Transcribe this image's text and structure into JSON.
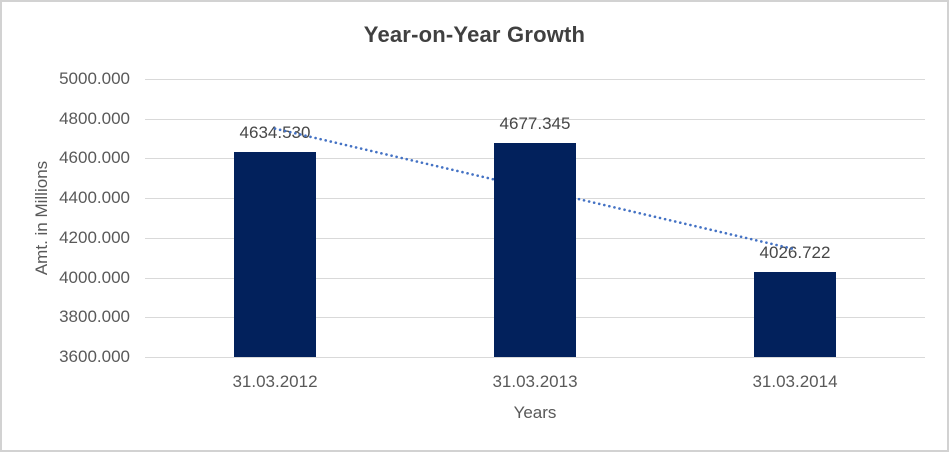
{
  "chart": {
    "title": "Year-on-Year Growth",
    "y_axis_title": "Amt. in Millions",
    "x_axis_title": "Years"
  },
  "chart_data": {
    "type": "bar",
    "title": "Year-on-Year Growth",
    "xlabel": "Years",
    "ylabel": "Amt. in Millions",
    "categories": [
      "31.03.2012",
      "31.03.2013",
      "31.03.2014"
    ],
    "values": [
      4634.53,
      4677.345,
      4026.722
    ],
    "data_labels": [
      "4634.530",
      "4677.345",
      "4026.722"
    ],
    "ylim": [
      3600,
      5000
    ],
    "ytick_step": 200,
    "ytick_labels": [
      "5000.000",
      "4800.000",
      "4600.000",
      "4400.000",
      "4200.000",
      "4000.000",
      "3800.000",
      "3600.000"
    ],
    "grid": true,
    "legend": "none",
    "trendline": {
      "type": "linear",
      "style": "dotted",
      "start_value": 4750.1,
      "end_value": 4142.3
    },
    "colors": {
      "bar": "#02215C",
      "trendline": "#4472C4",
      "gridline": "#D9D9D9",
      "title_text": "#404040",
      "axis_text": "#595959",
      "data_label_text": "#474747",
      "border": "#D2D2D2",
      "background": "#FFFFFF"
    }
  }
}
